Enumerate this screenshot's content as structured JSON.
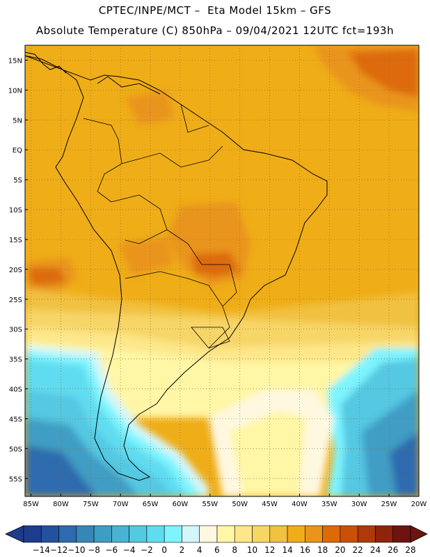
{
  "header": {
    "line1": "CPTEC/INPE/MCT –  Eta Model 15km – GFS",
    "line2": "Absolute Temperature (C) 850hPa – 09/04/2021 12UTC fct=193h"
  },
  "map": {
    "lat_labels": [
      "15N",
      "10N",
      "5N",
      "EQ",
      "5S",
      "10S",
      "15S",
      "20S",
      "25S",
      "30S",
      "35S",
      "40S",
      "45S",
      "50S",
      "55S"
    ],
    "lon_labels": [
      "85W",
      "80W",
      "75W",
      "70W",
      "65W",
      "60W",
      "55W",
      "50W",
      "45W",
      "40W",
      "35W",
      "30W",
      "25W",
      "20W"
    ],
    "lat_range": [
      17.5,
      -58
    ],
    "lon_range": [
      -86,
      -20
    ],
    "grid": "dotted"
  },
  "colorbar": {
    "labels": [
      "-14",
      "-12",
      "-10",
      "-8",
      "-6",
      "-4",
      "-2",
      "0",
      "2",
      "4",
      "6",
      "8",
      "10",
      "12",
      "14",
      "16",
      "18",
      "20",
      "22",
      "24",
      "26",
      "28"
    ],
    "colors": [
      "#1d3c8c",
      "#24519d",
      "#2d6aae",
      "#3786b8",
      "#3f9dc4",
      "#4ab2d2",
      "#55c8e2",
      "#60dcf0",
      "#7ef4ff",
      "#d4f6fa",
      "#fff8e0",
      "#fff6a6",
      "#fde78a",
      "#f7d668",
      "#f1c140",
      "#efad17",
      "#e9941a",
      "#dd6a09",
      "#c8510a",
      "#ac3a0a",
      "#8e240c",
      "#6e1410"
    ]
  }
}
